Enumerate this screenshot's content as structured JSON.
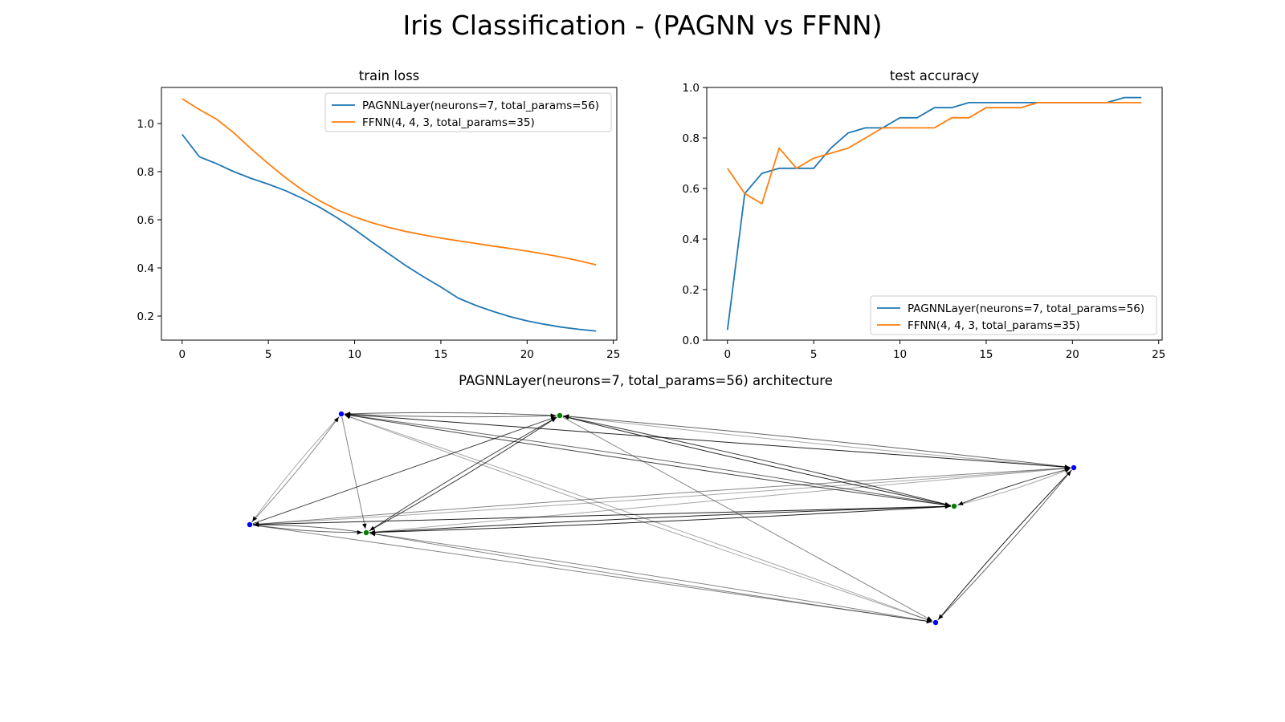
{
  "figure": {
    "title": "Iris Classification - (PAGNN vs FFNN)"
  },
  "colors": {
    "blue": "#1f77b4",
    "orange": "#ff7f0e",
    "node_input": "#0000ff",
    "node_output": "#008000"
  },
  "chart_data": [
    {
      "type": "line",
      "title": "train loss",
      "xlabel": "",
      "ylabel": "",
      "xlim": [
        -1.2,
        25.2
      ],
      "ylim": [
        0.1,
        1.15
      ],
      "xticks": [
        0,
        5,
        10,
        15,
        20,
        25
      ],
      "yticks": [
        0.2,
        0.4,
        0.6,
        0.8,
        1.0
      ],
      "ytick_labels": [
        "0.2",
        "0.4",
        "0.6",
        "0.8",
        "1.0"
      ],
      "legend": "top-right",
      "x": [
        0,
        1,
        2,
        3,
        4,
        5,
        6,
        7,
        8,
        9,
        10,
        11,
        12,
        13,
        14,
        15,
        16,
        17,
        18,
        19,
        20,
        21,
        22,
        23,
        24
      ],
      "series": [
        {
          "name": "PAGNNLayer(neurons=7, total_params=56)",
          "color": "#1f77b4",
          "values": [
            0.955,
            0.862,
            0.833,
            0.8,
            0.772,
            0.748,
            0.721,
            0.688,
            0.651,
            0.608,
            0.56,
            0.508,
            0.458,
            0.408,
            0.363,
            0.321,
            0.275,
            0.245,
            0.22,
            0.198,
            0.18,
            0.166,
            0.154,
            0.145,
            0.138
          ]
        },
        {
          "name": "FFNN(4, 4, 3, total_params=35)",
          "color": "#ff7f0e",
          "values": [
            1.103,
            1.058,
            1.018,
            0.961,
            0.895,
            0.833,
            0.775,
            0.722,
            0.678,
            0.641,
            0.612,
            0.588,
            0.568,
            0.551,
            0.537,
            0.524,
            0.513,
            0.502,
            0.491,
            0.481,
            0.47,
            0.458,
            0.445,
            0.43,
            0.413
          ]
        }
      ]
    },
    {
      "type": "line",
      "title": "test accuracy",
      "xlabel": "",
      "ylabel": "",
      "xlim": [
        -1.2,
        25.2
      ],
      "ylim": [
        0,
        1.0
      ],
      "xticks": [
        0,
        5,
        10,
        15,
        20,
        25
      ],
      "yticks": [
        0.0,
        0.2,
        0.4,
        0.6,
        0.8,
        1.0
      ],
      "ytick_labels": [
        "0.0",
        "0.2",
        "0.4",
        "0.6",
        "0.8",
        "1.0"
      ],
      "legend": "bottom-right",
      "x": [
        0,
        1,
        2,
        3,
        4,
        5,
        6,
        7,
        8,
        9,
        10,
        11,
        12,
        13,
        14,
        15,
        16,
        17,
        18,
        19,
        20,
        21,
        22,
        23,
        24
      ],
      "series": [
        {
          "name": "PAGNNLayer(neurons=7, total_params=56)",
          "color": "#1f77b4",
          "values": [
            0.04,
            0.58,
            0.66,
            0.68,
            0.68,
            0.68,
            0.76,
            0.82,
            0.84,
            0.84,
            0.88,
            0.88,
            0.92,
            0.92,
            0.94,
            0.94,
            0.94,
            0.94,
            0.94,
            0.94,
            0.94,
            0.94,
            0.94,
            0.96,
            0.96
          ]
        },
        {
          "name": "FFNN(4, 4, 3, total_params=35)",
          "color": "#ff7f0e",
          "values": [
            0.68,
            0.58,
            0.54,
            0.76,
            0.68,
            0.72,
            0.74,
            0.76,
            0.8,
            0.84,
            0.84,
            0.84,
            0.84,
            0.88,
            0.88,
            0.92,
            0.92,
            0.92,
            0.94,
            0.94,
            0.94,
            0.94,
            0.94,
            0.94,
            0.94
          ]
        }
      ]
    }
  ],
  "graph": {
    "title": "PAGNNLayer(neurons=7, total_params=56) architecture",
    "nodes": [
      {
        "id": "n1",
        "type": "input"
      },
      {
        "id": "n2",
        "type": "input"
      },
      {
        "id": "n3",
        "type": "output"
      },
      {
        "id": "n4",
        "type": "output"
      },
      {
        "id": "n5",
        "type": "output"
      },
      {
        "id": "n6",
        "type": "input"
      },
      {
        "id": "n7",
        "type": "input"
      }
    ],
    "edges": [
      [
        "n1",
        "n2"
      ],
      [
        "n1",
        "n3"
      ],
      [
        "n1",
        "n4"
      ],
      [
        "n1",
        "n5"
      ],
      [
        "n1",
        "n6"
      ],
      [
        "n1",
        "n7"
      ],
      [
        "n2",
        "n1"
      ],
      [
        "n2",
        "n3"
      ],
      [
        "n2",
        "n4"
      ],
      [
        "n2",
        "n5"
      ],
      [
        "n2",
        "n6"
      ],
      [
        "n2",
        "n7"
      ],
      [
        "n3",
        "n2"
      ],
      [
        "n3",
        "n4"
      ],
      [
        "n3",
        "n5"
      ],
      [
        "n3",
        "n6"
      ],
      [
        "n3",
        "n7"
      ],
      [
        "n4",
        "n1"
      ],
      [
        "n4",
        "n3"
      ],
      [
        "n4",
        "n5"
      ],
      [
        "n4",
        "n6"
      ],
      [
        "n4",
        "n7"
      ],
      [
        "n5",
        "n1"
      ],
      [
        "n5",
        "n4"
      ],
      [
        "n5",
        "n3"
      ],
      [
        "n5",
        "n6"
      ],
      [
        "n6",
        "n2"
      ],
      [
        "n6",
        "n4"
      ],
      [
        "n6",
        "n5"
      ],
      [
        "n6",
        "n7"
      ],
      [
        "n7",
        "n1"
      ],
      [
        "n7",
        "n3"
      ],
      [
        "n7",
        "n6"
      ]
    ]
  }
}
